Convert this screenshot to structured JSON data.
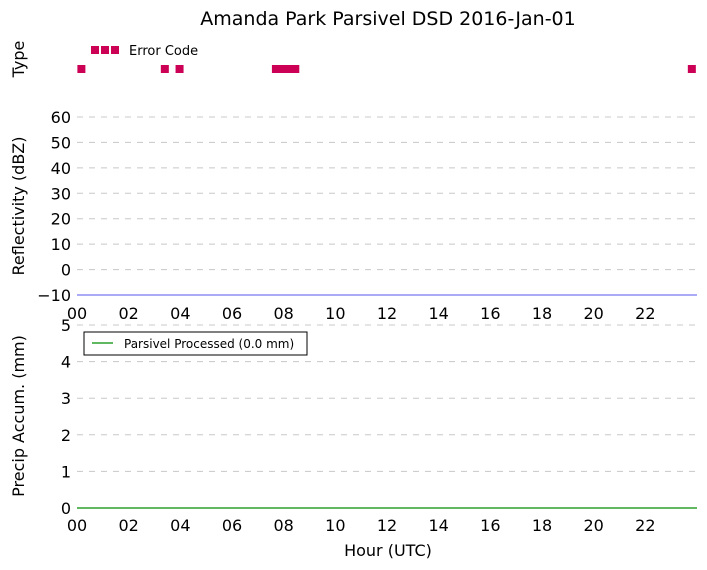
{
  "title": "Amanda Park Parsivel DSD 2016-Jan-01",
  "xlabel": "Hour (UTC)",
  "x_tick_labels": [
    "00",
    "02",
    "04",
    "06",
    "08",
    "10",
    "12",
    "14",
    "16",
    "18",
    "20",
    "22"
  ],
  "colors": {
    "error_code": "#cc0055",
    "reflectivity_line": "#5555ee",
    "precip_line": "#2ca02c",
    "grid": "#c8c8c8"
  },
  "chart_data": [
    {
      "type": "scatter",
      "ylabel": "Type",
      "legend": {
        "entries": [
          "Error Code"
        ],
        "placement": "top-left"
      },
      "xlim": [
        0,
        24
      ],
      "series": [
        {
          "name": "Error Code",
          "marker": "square",
          "x": [
            0.17,
            3.4,
            3.97,
            7.7,
            7.95,
            8.2,
            8.45,
            23.8
          ]
        }
      ]
    },
    {
      "type": "line",
      "ylabel": "Reflectivity (dBZ)",
      "xlim": [
        0,
        24
      ],
      "ylim": [
        -10,
        60
      ],
      "y_ticks": [
        60,
        50,
        40,
        30,
        20,
        10,
        0,
        -10
      ],
      "y_tick_labels": [
        "60",
        "50",
        "40",
        "30",
        "20",
        "10",
        "0",
        "−10"
      ],
      "grid": true,
      "series": [
        {
          "x": [
            0,
            24
          ],
          "y": [
            -10,
            -10
          ]
        }
      ]
    },
    {
      "type": "line",
      "ylabel": "Precip Accum. (mm)",
      "xlim": [
        0,
        24
      ],
      "ylim": [
        0,
        5
      ],
      "y_ticks": [
        5,
        4,
        3,
        2,
        1,
        0
      ],
      "y_tick_labels": [
        "5",
        "4",
        "3",
        "2",
        "1",
        "0"
      ],
      "grid": true,
      "legend": {
        "entries": [
          "Parsivel Processed (0.0 mm)"
        ],
        "placement": "top-left"
      },
      "series": [
        {
          "name": "Parsivel Processed (0.0 mm)",
          "x": [
            0,
            24
          ],
          "y": [
            0,
            0
          ]
        }
      ]
    }
  ]
}
